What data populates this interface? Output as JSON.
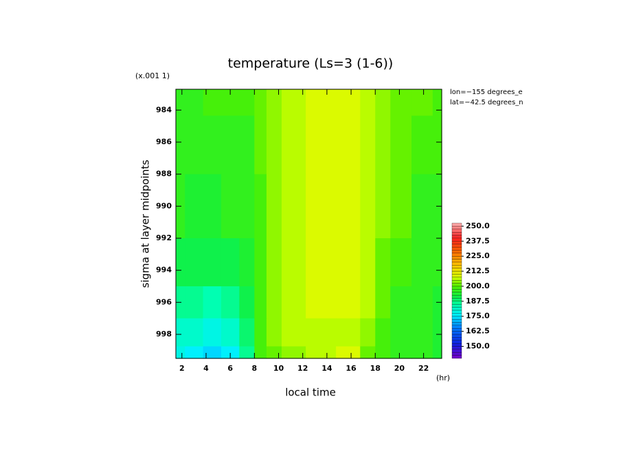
{
  "chart_data": {
    "type": "contour",
    "title": "temperature (Ls=3 (1-6))",
    "scale_note": "(x.001 1)",
    "x_label": "local time",
    "x_unit": "(hr)",
    "y_label": "sigma at layer midpoints",
    "annotations": [
      "lon=−155 degrees_e",
      "lat=−42.5 degrees_n"
    ],
    "x": [
      1.5,
      3,
      4.5,
      6,
      7.5,
      8.5,
      9.5,
      11,
      13.5,
      16,
      17.5,
      18.5,
      20,
      22,
      23.5
    ],
    "y": [
      982.7,
      986,
      990,
      994,
      996,
      998,
      999.5
    ],
    "z": [
      [
        197,
        197,
        198,
        198,
        199,
        201,
        203,
        205,
        209,
        209,
        207,
        203,
        201,
        200,
        199
      ],
      [
        196,
        196,
        196,
        197,
        197,
        200,
        203,
        205,
        209,
        209,
        207,
        203,
        200,
        198,
        198
      ],
      [
        195,
        194,
        194,
        195,
        196,
        199,
        203,
        205,
        209,
        209,
        207,
        203,
        200,
        197,
        196
      ],
      [
        191,
        190,
        190,
        191,
        194,
        199,
        203,
        205,
        208,
        208,
        206,
        202,
        199,
        196,
        195
      ],
      [
        186,
        185,
        184,
        185,
        192,
        199,
        203,
        205,
        208,
        208,
        205,
        200,
        197,
        195,
        194
      ],
      [
        182,
        181,
        179,
        180,
        189,
        198,
        203,
        205,
        207,
        207,
        203,
        199,
        196,
        195,
        194
      ],
      [
        178,
        177,
        174,
        176,
        187,
        198,
        202,
        204,
        207,
        208,
        202,
        198,
        196,
        195,
        194
      ]
    ],
    "xlim": [
      1.5,
      23.5
    ],
    "ylim": [
      982.7,
      999.5
    ],
    "y_inverted": true,
    "xticks": [
      2,
      4,
      6,
      8,
      10,
      12,
      14,
      16,
      18,
      20,
      22
    ],
    "yticks": [
      984,
      986,
      988,
      990,
      992,
      994,
      996,
      998
    ],
    "colorbar": {
      "lim": [
        140,
        252.5
      ],
      "step": 2.5,
      "ticks": [
        {
          "value": 150,
          "label": "150.0"
        },
        {
          "value": 162.5,
          "label": "162.5"
        },
        {
          "value": 175,
          "label": "175.0"
        },
        {
          "value": 187.5,
          "label": "187.5"
        },
        {
          "value": 200,
          "label": "200.0"
        },
        {
          "value": 212.5,
          "label": "212.5"
        },
        {
          "value": 225,
          "label": "225.0"
        },
        {
          "value": 237.5,
          "label": "237.5"
        },
        {
          "value": 250,
          "label": "250.0"
        }
      ],
      "palette": [
        [
          140,
          "#7a00c8"
        ],
        [
          152,
          "#1020e0"
        ],
        [
          166,
          "#0080ff"
        ],
        [
          176,
          "#00f0ff"
        ],
        [
          184,
          "#00ffb0"
        ],
        [
          192,
          "#10f040"
        ],
        [
          200,
          "#50f000"
        ],
        [
          208,
          "#d8ff00"
        ],
        [
          218,
          "#ffc000"
        ],
        [
          230,
          "#ff6000"
        ],
        [
          240,
          "#ff2020"
        ],
        [
          252.5,
          "#ffb0b0"
        ]
      ]
    }
  }
}
